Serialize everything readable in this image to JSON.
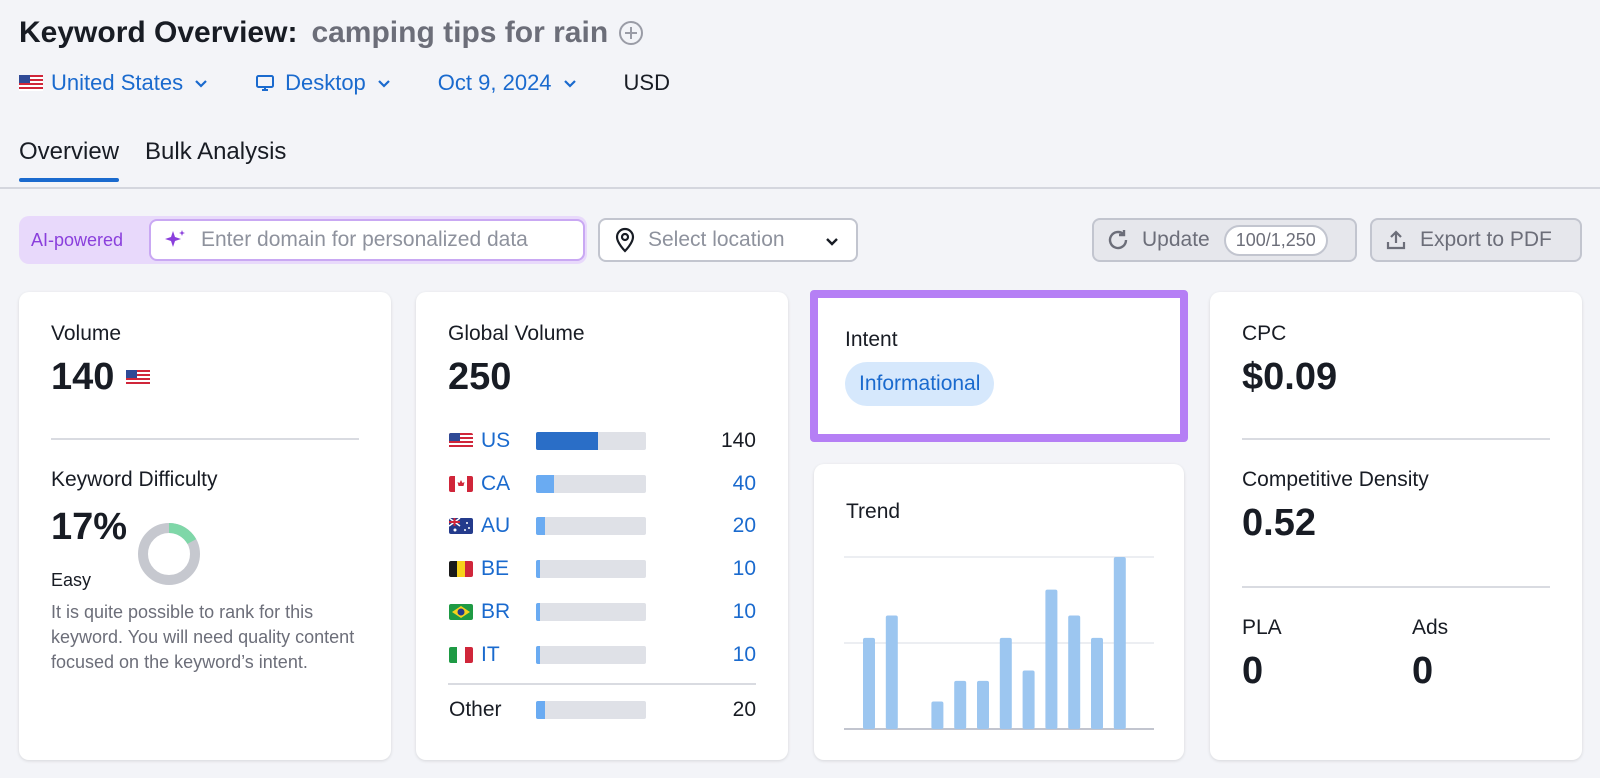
{
  "header": {
    "title": "Keyword Overview:",
    "keyword": "camping tips for rain"
  },
  "filters": {
    "country": "United States",
    "device": "Desktop",
    "date": "Oct 9, 2024",
    "currency": "USD"
  },
  "tabs": [
    "Overview",
    "Bulk Analysis"
  ],
  "toolbar": {
    "ai_label": "AI-powered",
    "domain_placeholder": "Enter domain for personalized data",
    "location_placeholder": "Select location",
    "update_label": "Update",
    "update_quota": "100/1,250",
    "export_label": "Export to PDF"
  },
  "volume": {
    "label": "Volume",
    "value": "140"
  },
  "keyword_difficulty": {
    "label": "Keyword Difficulty",
    "value": "17%",
    "percent": 17,
    "level": "Easy",
    "description": "It is quite possible to rank for this keyword. You will need quality content focused on the keyword’s intent."
  },
  "global_volume": {
    "label": "Global Volume",
    "value": "250",
    "countries": [
      {
        "code": "US",
        "value": "140",
        "share": 0.56
      },
      {
        "code": "CA",
        "value": "40",
        "share": 0.16
      },
      {
        "code": "AU",
        "value": "20",
        "share": 0.08
      },
      {
        "code": "BE",
        "value": "10",
        "share": 0.04
      },
      {
        "code": "BR",
        "value": "10",
        "share": 0.04
      },
      {
        "code": "IT",
        "value": "10",
        "share": 0.04
      }
    ],
    "other": {
      "label": "Other",
      "value": "20",
      "share": 0.08
    }
  },
  "intent": {
    "label": "Intent",
    "badge": "Informational"
  },
  "trend": {
    "label": "Trend",
    "values": [
      0.53,
      0.66,
      0,
      0.16,
      0.28,
      0.28,
      0.53,
      0.34,
      0.81,
      0.66,
      0.53,
      1.0
    ]
  },
  "cpc": {
    "label": "CPC",
    "value": "$0.09"
  },
  "competitive_density": {
    "label": "Competitive Density",
    "value": "0.52"
  },
  "pla": {
    "label": "PLA",
    "value": "0"
  },
  "ads": {
    "label": "Ads",
    "value": "0"
  },
  "colors": {
    "accent": "#1a6ace",
    "highlight": "#b57ff5",
    "trend_bar": "#9cc6f0",
    "kd_easy": "#7fd7a8"
  }
}
